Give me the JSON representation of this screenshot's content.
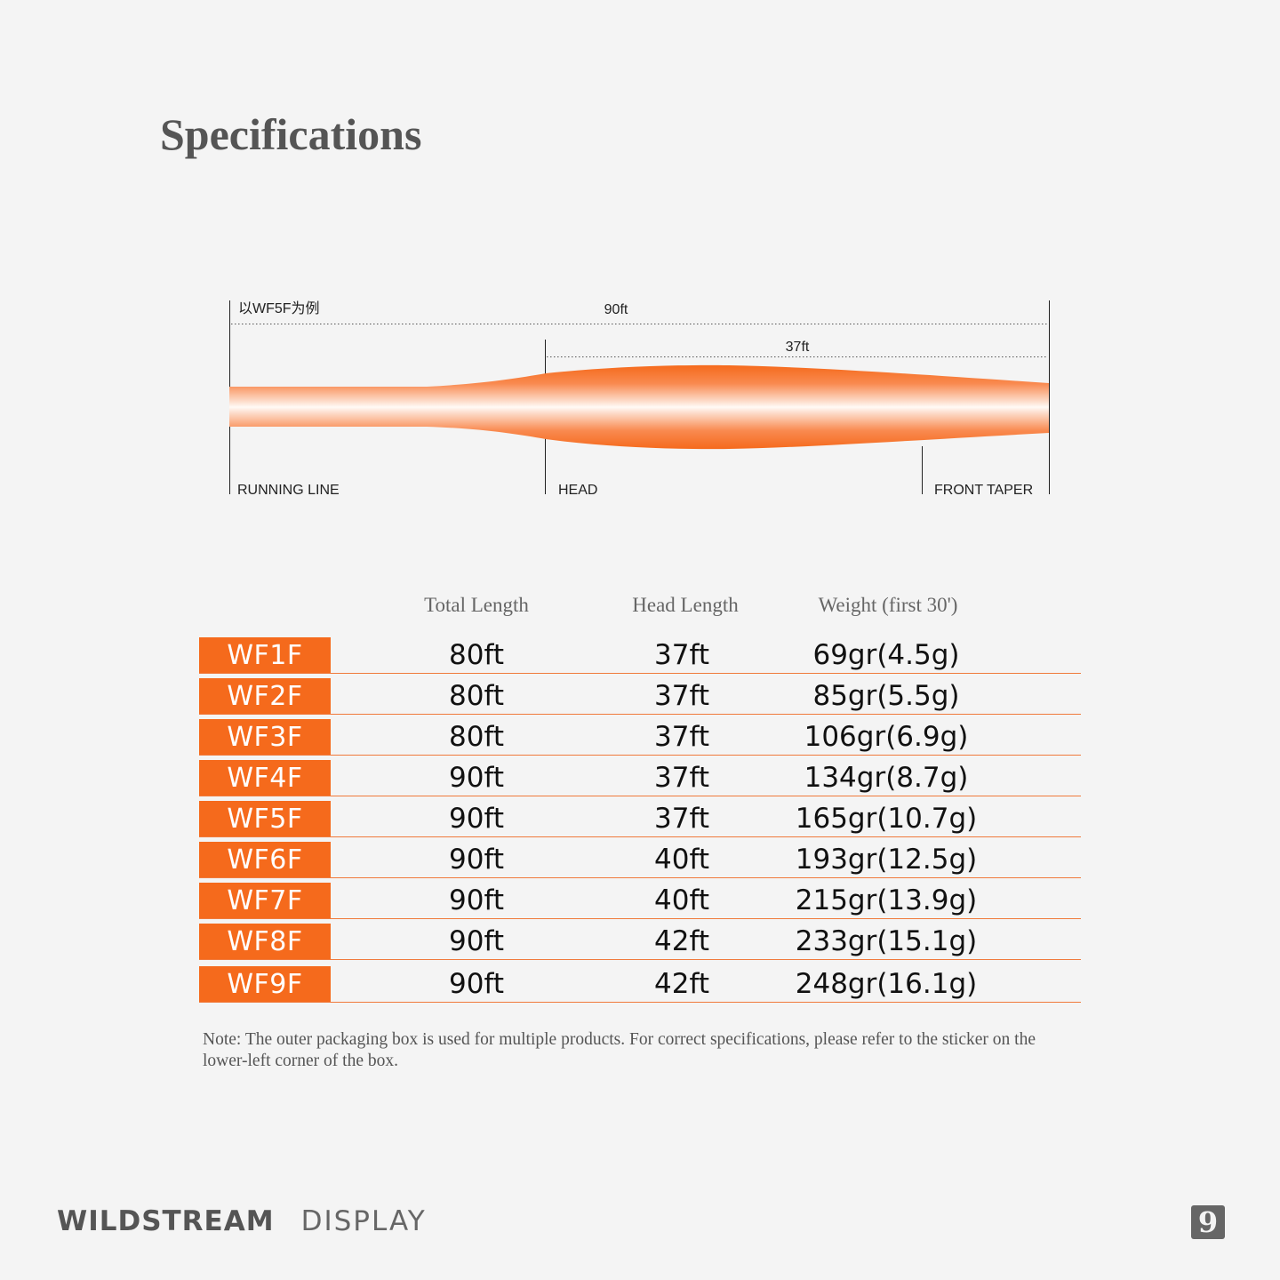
{
  "title": "Specifications",
  "diagram": {
    "example_label": "以WF5F为例",
    "total_label": "90ft",
    "head_label": "37ft",
    "sections": [
      "RUNNING LINE",
      "HEAD",
      "FRONT TAPER"
    ],
    "line_color": "#f56a1c"
  },
  "table": {
    "headers": [
      "Total Length",
      "Head Length",
      "Weight (first 30')"
    ],
    "rows": [
      {
        "model": "WF1F",
        "total": "80ft",
        "head": "37ft",
        "weight": "69gr(4.5g)"
      },
      {
        "model": "WF2F",
        "total": "80ft",
        "head": "37ft",
        "weight": "85gr(5.5g)"
      },
      {
        "model": "WF3F",
        "total": "80ft",
        "head": "37ft",
        "weight": "106gr(6.9g)"
      },
      {
        "model": "WF4F",
        "total": "90ft",
        "head": "37ft",
        "weight": "134gr(8.7g)"
      },
      {
        "model": "WF5F",
        "total": "90ft",
        "head": "37ft",
        "weight": "165gr(10.7g)"
      },
      {
        "model": "WF6F",
        "total": "90ft",
        "head": "40ft",
        "weight": "193gr(12.5g)"
      },
      {
        "model": "WF7F",
        "total": "90ft",
        "head": "40ft",
        "weight": "215gr(13.9g)"
      },
      {
        "model": "WF8F",
        "total": "90ft",
        "head": "42ft",
        "weight": "233gr(15.1g)"
      },
      {
        "model": "WF9F",
        "total": "90ft",
        "head": "42ft",
        "weight": "248gr(16.1g)"
      }
    ]
  },
  "note": "Note: The outer packaging box is used for multiple products. For correct specifications, please refer to the sticker on the lower-left corner of the box.",
  "footer": {
    "brand_bold": "WILDSTREAM",
    "brand_light": "DISPLAY",
    "logo_glyph": "9",
    "logo_icon": "brand-logo-icon"
  }
}
